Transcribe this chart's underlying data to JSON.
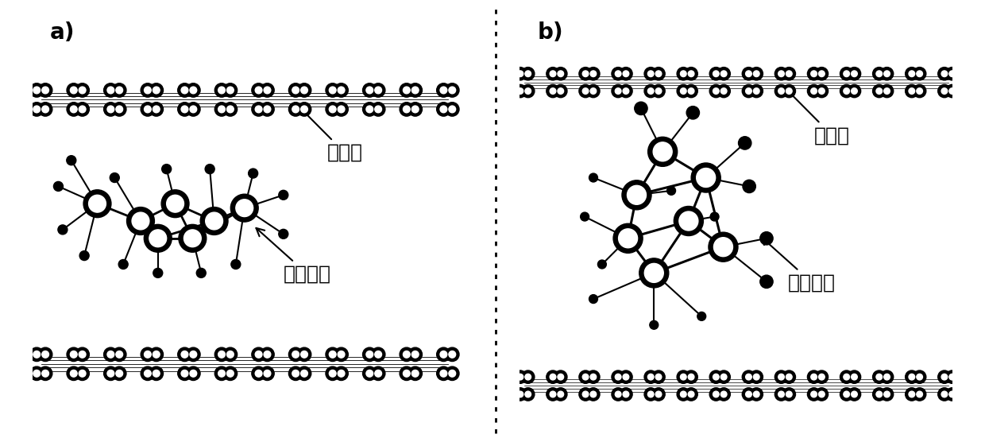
{
  "background": "#ffffff",
  "label_a": "a)",
  "label_b": "b)",
  "label_cn": "氮化碳",
  "label_hept": "七酆酸根",
  "fontsize_label": 20,
  "fontsize_cn": 18,
  "fig_width": 12.4,
  "fig_height": 5.56
}
